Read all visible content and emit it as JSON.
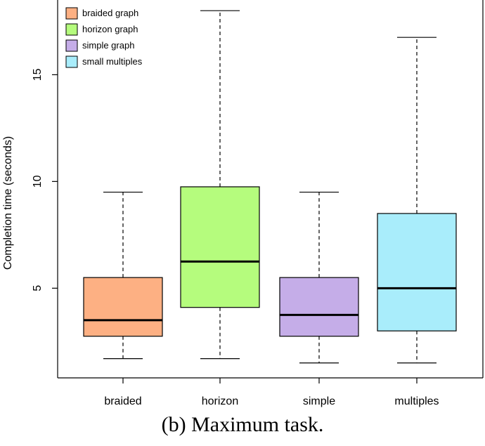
{
  "caption": "(b) Maximum task.",
  "chart_data": {
    "type": "boxplot",
    "title": "",
    "xlabel": "",
    "ylabel": "Completion time (seconds)",
    "ylim": [
      0.8,
      18.5
    ],
    "yticks": [
      5,
      10,
      15
    ],
    "categories": [
      "braided",
      "horizon",
      "simple",
      "multiples"
    ],
    "boxes": [
      {
        "category": "braided",
        "whisker_low": 1.7,
        "q1": 2.75,
        "median": 3.5,
        "q3": 5.5,
        "whisker_high": 9.5,
        "color": "#FDB083"
      },
      {
        "category": "horizon",
        "whisker_low": 1.7,
        "q1": 4.1,
        "median": 6.25,
        "q3": 9.75,
        "whisker_high": 18.0,
        "color": "#B5FC7D"
      },
      {
        "category": "simple",
        "whisker_low": 1.5,
        "q1": 2.75,
        "median": 3.75,
        "q3": 5.5,
        "whisker_high": 9.5,
        "color": "#C5ADE8"
      },
      {
        "category": "multiples",
        "whisker_low": 1.5,
        "q1": 3.0,
        "median": 5.0,
        "q3": 8.5,
        "whisker_high": 16.75,
        "color": "#A9EDFB"
      }
    ],
    "legend": {
      "placement": "top-left",
      "entries": [
        {
          "label": "braided graph",
          "color": "#FDB083"
        },
        {
          "label": "horizon graph",
          "color": "#B5FC7D"
        },
        {
          "label": "simple graph",
          "color": "#C5ADE8"
        },
        {
          "label": "small multiples",
          "color": "#A9EDFB"
        }
      ]
    },
    "grid": false
  }
}
